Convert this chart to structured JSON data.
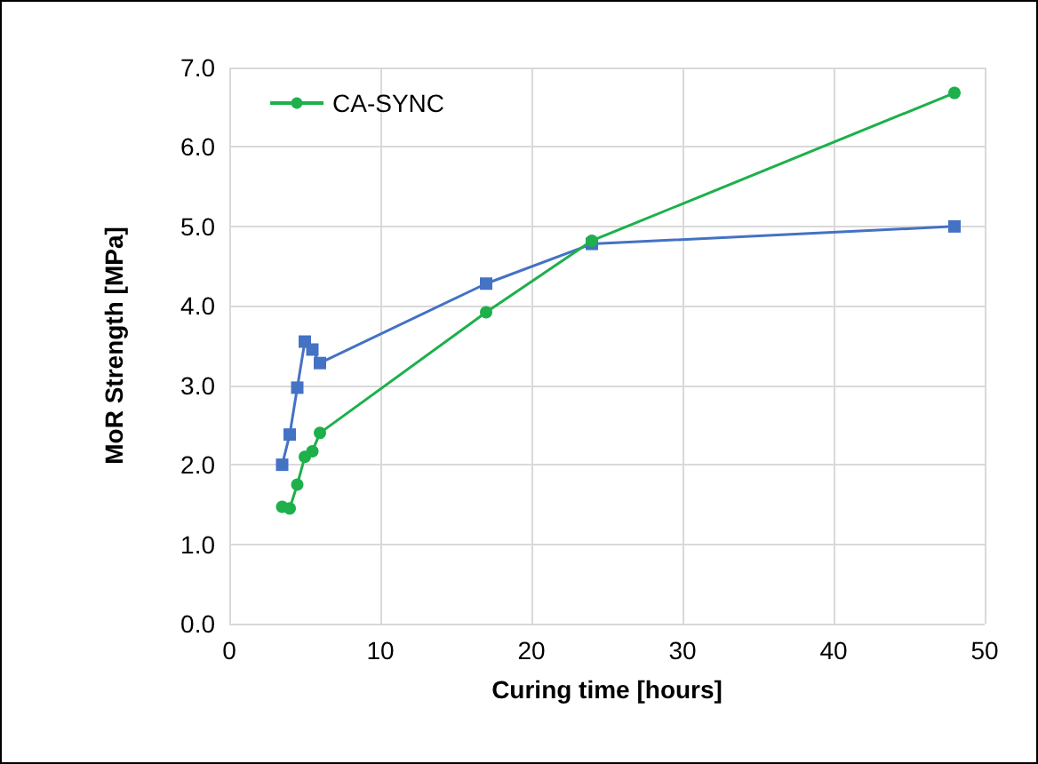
{
  "chart_data": {
    "type": "line",
    "xlabel": "Curing time [hours]",
    "ylabel": "MoR Strength [MPa]",
    "xlim": [
      0,
      50
    ],
    "xticks": [
      0,
      10,
      20,
      30,
      40,
      50
    ],
    "ylim": [
      0,
      7
    ],
    "yticks": [
      {
        "value": 0,
        "label": "0.0"
      },
      {
        "value": 1,
        "label": "1.0"
      },
      {
        "value": 2,
        "label": "2.0"
      },
      {
        "value": 3,
        "label": "3.0"
      },
      {
        "value": 4,
        "label": "4.0"
      },
      {
        "value": 5,
        "label": "5.0"
      },
      {
        "value": 6,
        "label": "6.0"
      },
      {
        "value": 7,
        "label": "7.0"
      }
    ],
    "grid": true,
    "legend": "top left",
    "line_style": "solid",
    "series": [
      {
        "name": "CA-SYNC",
        "color": "#1db04b",
        "marker": "circle",
        "x": [
          3.5,
          4,
          4.5,
          5,
          5.5,
          6,
          17,
          24,
          48
        ],
        "values": [
          1.47,
          1.45,
          1.75,
          2.1,
          2.17,
          2.4,
          3.92,
          4.82,
          6.68
        ]
      },
      {
        "color": "#4472c4",
        "marker": "square",
        "x": [
          3.5,
          4,
          4.5,
          5,
          5.5,
          6,
          17,
          24,
          48
        ],
        "values": [
          2.0,
          2.38,
          2.97,
          3.55,
          3.45,
          3.28,
          4.28,
          4.78,
          5.0
        ]
      }
    ]
  }
}
